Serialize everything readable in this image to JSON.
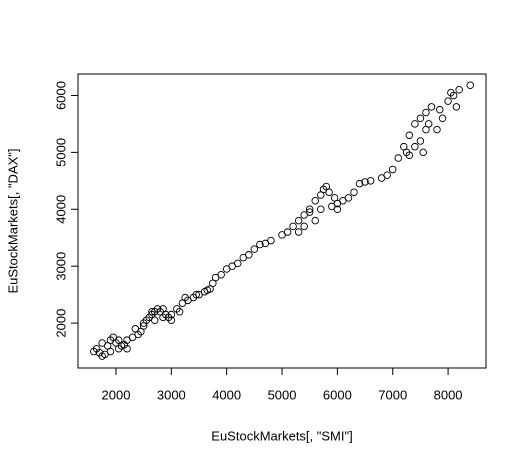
{
  "chart_data": {
    "type": "scatter",
    "xlabel": "EuStockMarkets[, \"SMI\"]",
    "ylabel": "EuStockMarkets[, \"DAX\"]",
    "xlim": [
      1314,
      8685
    ],
    "ylim": [
      1211,
      6377
    ],
    "xticks": [
      2000,
      3000,
      4000,
      5000,
      6000,
      7000,
      8000
    ],
    "yticks": [
      2000,
      3000,
      4000,
      5000,
      6000
    ],
    "color": "#000000",
    "x": [
      1600,
      1650,
      1700,
      1750,
      1800,
      1850,
      1900,
      1950,
      2000,
      2050,
      2100,
      2150,
      2200,
      2300,
      2400,
      2450,
      2500,
      2550,
      2600,
      2650,
      2700,
      2750,
      2800,
      2850,
      2900,
      2950,
      3000,
      3100,
      3200,
      3250,
      3300,
      3400,
      3500,
      3600,
      3700,
      3750,
      3800,
      3900,
      4000,
      4100,
      4200,
      4400,
      4500,
      4600,
      4800,
      5000,
      5100,
      5200,
      5300,
      5400,
      5500,
      5600,
      5700,
      5800,
      5850,
      5700,
      5900,
      6000,
      6100,
      6200,
      6300,
      6400,
      6500,
      6600,
      6800,
      6900,
      7000,
      7100,
      7200,
      7300,
      7400,
      7500,
      7600,
      7700,
      7600,
      7500,
      7800,
      7900,
      8000,
      8100,
      8200,
      8400,
      8150,
      7400,
      7300,
      7550,
      5400,
      5600,
      5300,
      2500,
      2700,
      3000,
      2200,
      1900,
      6000,
      1750,
      2050,
      2350,
      2650,
      2850,
      3150,
      3450,
      3650,
      4300,
      4700,
      5500,
      5750,
      5950,
      7650,
      7850,
      8050,
      7250
    ],
    "values": [
      1500,
      1550,
      1480,
      1420,
      1450,
      1600,
      1700,
      1750,
      1650,
      1550,
      1600,
      1620,
      1700,
      1750,
      1800,
      1850,
      1950,
      2050,
      2100,
      2150,
      2200,
      2250,
      2200,
      2100,
      2150,
      2100,
      2150,
      2250,
      2350,
      2450,
      2400,
      2450,
      2500,
      2550,
      2600,
      2700,
      2800,
      2850,
      2950,
      3000,
      3050,
      3200,
      3300,
      3380,
      3450,
      3550,
      3600,
      3700,
      3800,
      3900,
      4000,
      4150,
      4250,
      4400,
      4300,
      4000,
      4050,
      4100,
      4150,
      4200,
      4300,
      4450,
      4480,
      4500,
      4550,
      4600,
      4700,
      4900,
      5100,
      5300,
      5500,
      5600,
      5700,
      5800,
      5400,
      5200,
      5400,
      5600,
      5900,
      6000,
      6100,
      6180,
      5800,
      5100,
      4950,
      5000,
      3700,
      3800,
      3600,
      2000,
      2050,
      2050,
      1550,
      1500,
      4000,
      1650,
      1700,
      1900,
      2200,
      2250,
      2200,
      2500,
      2580,
      3150,
      3400,
      3950,
      4350,
      4200,
      5500,
      5750,
      6050,
      5000
    ]
  }
}
